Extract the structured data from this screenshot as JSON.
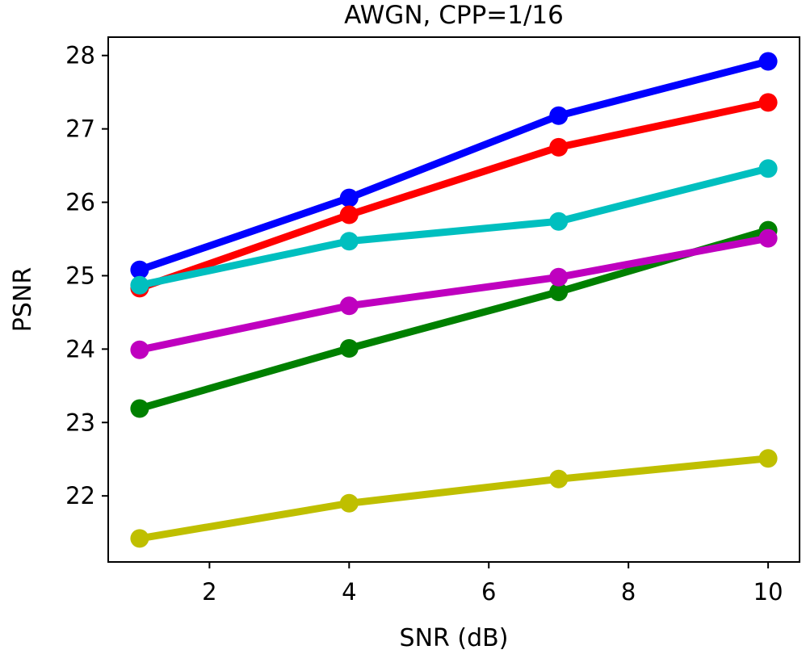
{
  "chart_data": {
    "type": "line",
    "title": "AWGN, CPP=1/16",
    "xlabel": "SNR (dB)",
    "ylabel": "PSNR",
    "x": [
      1,
      4,
      7,
      10
    ],
    "xlim": [
      0.55,
      10.45
    ],
    "ylim": [
      21.1,
      28.25
    ],
    "xticks": [
      2,
      4,
      6,
      8,
      10
    ],
    "xtick_labels": [
      "2",
      "4",
      "6",
      "8",
      "10"
    ],
    "yticks": [
      22,
      23,
      24,
      25,
      26,
      27,
      28
    ],
    "ytick_labels": [
      "22",
      "23",
      "24",
      "25",
      "26",
      "27",
      "28"
    ],
    "grid": false,
    "series": [
      {
        "name": "blue",
        "color": "#0000ff",
        "values": [
          25.08,
          26.06,
          27.18,
          27.92
        ]
      },
      {
        "name": "red",
        "color": "#ff0000",
        "values": [
          24.83,
          25.83,
          26.75,
          27.36
        ]
      },
      {
        "name": "cyan",
        "color": "#00bfbf",
        "values": [
          24.87,
          25.47,
          25.74,
          26.46
        ]
      },
      {
        "name": "green",
        "color": "#008000",
        "values": [
          23.19,
          24.01,
          24.78,
          25.62
        ]
      },
      {
        "name": "magenta",
        "color": "#bf00bf",
        "values": [
          23.99,
          24.59,
          24.98,
          25.51
        ]
      },
      {
        "name": "olive",
        "color": "#bfbf00",
        "values": [
          21.42,
          21.9,
          22.23,
          22.51
        ]
      }
    ]
  }
}
